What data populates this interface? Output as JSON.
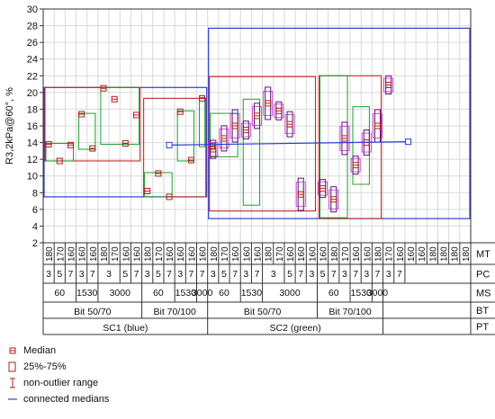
{
  "chart_data": {
    "type": "box",
    "ylabel": "R3,2kPa@60°, %",
    "ylim": [
      2,
      30
    ],
    "yticks": [
      2,
      4,
      6,
      8,
      10,
      12,
      14,
      16,
      18,
      20,
      22,
      24,
      26,
      28,
      30
    ],
    "grid": true,
    "category_rows": {
      "MT": [
        "180",
        "170",
        "160",
        "160",
        "160",
        "180",
        "170",
        "160",
        "160",
        "180",
        "170",
        "160",
        "160",
        "160",
        "160",
        "180",
        "170",
        "160",
        "160",
        "160",
        "180",
        "170",
        "160",
        "160",
        "160",
        "160",
        "180",
        "170",
        "160",
        "160",
        "180",
        "170",
        "160",
        "160",
        "160",
        "180",
        "180",
        "180",
        "180"
      ],
      "PC": [
        {
          "label": "3",
          "span": 1
        },
        {
          "label": "5",
          "span": 1
        },
        {
          "label": "7",
          "span": 1
        },
        {
          "label": "3",
          "span": 1
        },
        {
          "label": "7",
          "span": 1
        },
        {
          "label": "3",
          "span": 2
        },
        {
          "label": "5",
          "span": 1
        },
        {
          "label": "7",
          "span": 1
        },
        {
          "label": "3",
          "span": 1
        },
        {
          "label": "5",
          "span": 1
        },
        {
          "label": "7",
          "span": 1
        },
        {
          "label": "3",
          "span": 1
        },
        {
          "label": "7",
          "span": 1
        },
        {
          "label": "7",
          "span": 1
        },
        {
          "label": "3",
          "span": 1
        },
        {
          "label": "5",
          "span": 1
        },
        {
          "label": "7",
          "span": 1
        },
        {
          "label": "3",
          "span": 1
        },
        {
          "label": "7",
          "span": 1
        },
        {
          "label": "3",
          "span": 2
        },
        {
          "label": "5",
          "span": 1
        },
        {
          "label": "7",
          "span": 1
        },
        {
          "label": "3",
          "span": 1
        },
        {
          "label": "5",
          "span": 1
        },
        {
          "label": "7",
          "span": 1
        },
        {
          "label": "3",
          "span": 1
        },
        {
          "label": "7",
          "span": 1
        },
        {
          "label": "3",
          "span": 1
        },
        {
          "label": "7",
          "span": 1
        },
        {
          "label": "3",
          "span": 1
        },
        {
          "label": "7",
          "span": 1
        }
      ],
      "MS": [
        {
          "label": "60",
          "span": 3
        },
        {
          "label": "1530",
          "span": 2
        },
        {
          "label": "3000",
          "span": 4
        },
        {
          "label": "60",
          "span": 3
        },
        {
          "label": "1530",
          "span": 2
        },
        {
          "label": "3000",
          "span": 1
        },
        {
          "label": "60",
          "span": 3
        },
        {
          "label": "1530",
          "span": 2
        },
        {
          "label": "3000",
          "span": 5
        },
        {
          "label": "60",
          "span": 3
        },
        {
          "label": "1530",
          "span": 2
        },
        {
          "label": "3000",
          "span": 1
        }
      ],
      "BT": [
        {
          "label": "Bit 50/70",
          "span": 9
        },
        {
          "label": "Bit 70/100",
          "span": 6
        },
        {
          "label": "Bit 50/70",
          "span": 10
        },
        {
          "label": "Bit 70/100",
          "span": 6
        }
      ],
      "PT": [
        {
          "label": "SC1 (blue)",
          "span": 15
        },
        {
          "label": "SC2 (green)",
          "span": 16
        }
      ]
    },
    "row_labels": [
      "MT",
      "PC",
      "MS",
      "BT",
      "PT"
    ],
    "series": [
      {
        "name": "SC1 Bit 50/70 medians",
        "values": [
          13.8,
          11.8,
          13.7,
          17.4,
          13.3,
          20.5,
          19.2,
          13.9,
          17.3
        ]
      },
      {
        "name": "SC1 Bit 70/100 medians",
        "values": [
          8.2,
          10.3,
          7.5,
          17.7,
          11.9,
          19.3,
          13.6
        ]
      },
      {
        "name": "SC2 Bit 50/70 medians",
        "values": [
          13.2,
          14.5,
          16.0,
          15.5,
          17.2,
          18.7,
          17.8,
          16.2,
          7.8
        ]
      },
      {
        "name": "SC2 Bit 70/100 medians",
        "values": [
          8.5,
          7.2,
          14.5,
          11.3,
          14.0,
          16.0,
          20.9
        ]
      }
    ],
    "boxes": [
      {
        "q1": 11.8,
        "q3": 20.6,
        "lo": 11.8,
        "hi": 20.6
      },
      {
        "q1": 7.5,
        "q3": 19.3,
        "lo": 7.5,
        "hi": 19.3
      },
      {
        "q1": 5.8,
        "q3": 21.9,
        "lo": 5.8,
        "hi": 21.9
      },
      {
        "q1": 4.9,
        "q3": 22.0,
        "lo": 4.9,
        "hi": 22.0
      }
    ],
    "group_boxes": [
      {
        "q1": 7.5,
        "q3": 20.6
      },
      {
        "q1": 4.9,
        "q3": 27.7
      }
    ],
    "connected_medians": [
      13.7,
      14.1
    ]
  },
  "legend": {
    "items": [
      {
        "label": "Median",
        "icon": "median-marker-icon",
        "color": "#b01c1c"
      },
      {
        "label": "25%-75%",
        "icon": "box-icon",
        "color": "#b01c1c"
      },
      {
        "label": "non-outlier range",
        "icon": "whisker-icon",
        "color": "#b01c1c"
      },
      {
        "label": "connected medians",
        "icon": "line-icon",
        "color": "#2b3fd6"
      }
    ]
  },
  "colors": {
    "blue": "#2b3fd6",
    "red": "#c62828",
    "green": "#1e9e2e",
    "magenta": "#c02bc9",
    "purple": "#5a0f7a",
    "grid": "#d9d9d9"
  }
}
